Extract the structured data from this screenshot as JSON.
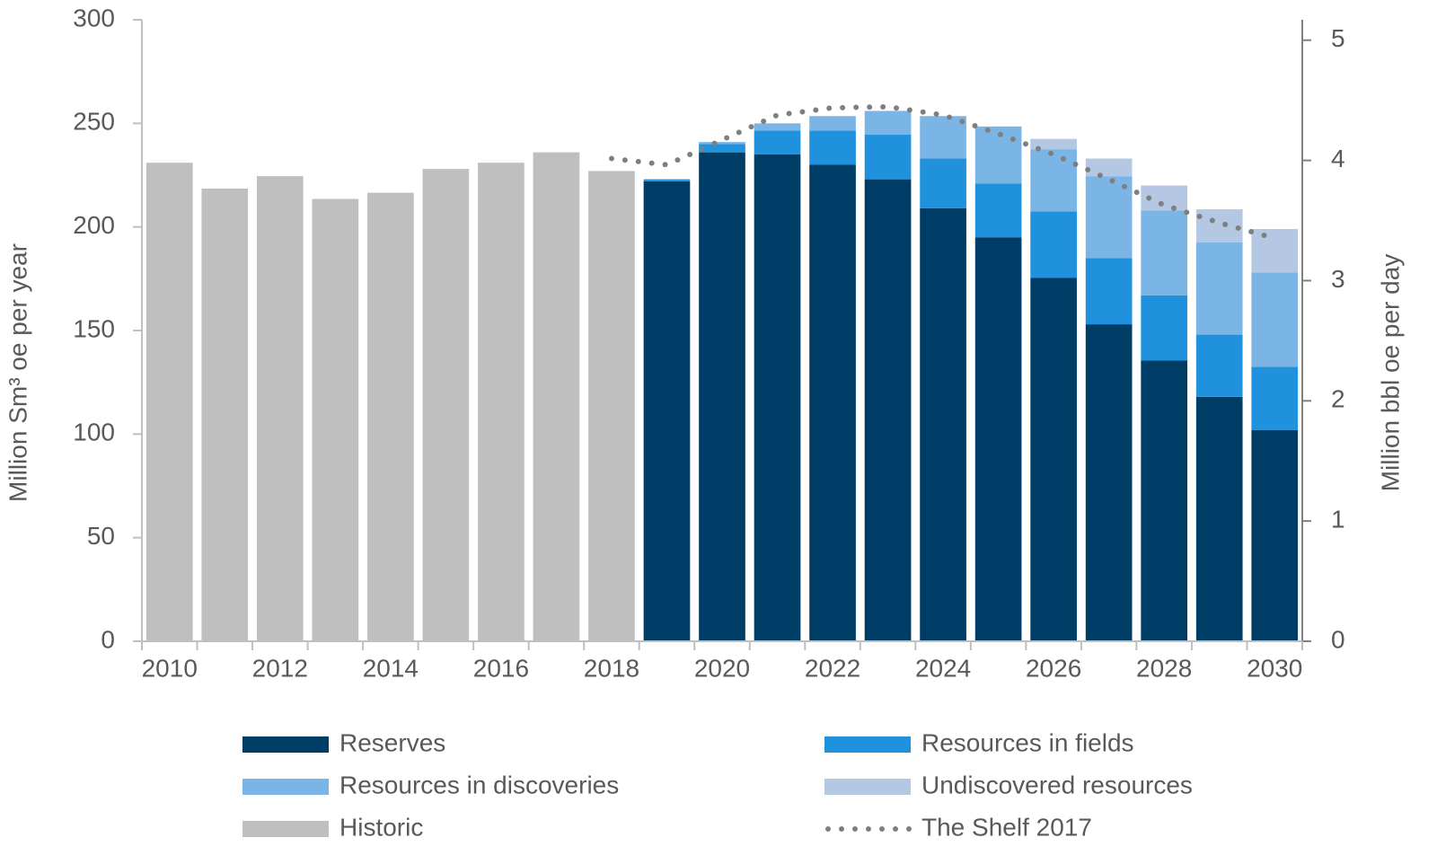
{
  "chart_data": {
    "type": "bar",
    "stacked": true,
    "categories": [
      "2010",
      null,
      "2012",
      null,
      "2014",
      null,
      "2016",
      null,
      "2018",
      null,
      "2020",
      null,
      "2022",
      null,
      "2024",
      null,
      "2026",
      null,
      "2028",
      null,
      "2030"
    ],
    "series": [
      {
        "name": "Reserves",
        "color": "#003d66",
        "values": [
          null,
          null,
          null,
          null,
          null,
          null,
          null,
          null,
          null,
          222,
          236,
          235,
          230,
          223,
          209,
          195,
          175.5,
          153,
          135.5,
          118,
          102
        ]
      },
      {
        "name": "Resources in fields",
        "color": "#2091dc",
        "values": [
          null,
          null,
          null,
          null,
          null,
          null,
          null,
          null,
          null,
          1,
          4,
          11.5,
          16.5,
          21.5,
          24,
          26,
          32,
          32,
          31.5,
          30,
          30.5
        ]
      },
      {
        "name": "Resources in discoveries",
        "color": "#7bb5e6",
        "values": [
          null,
          null,
          null,
          null,
          null,
          null,
          null,
          null,
          null,
          0,
          1,
          3.5,
          7,
          11.5,
          20.5,
          27.5,
          30,
          39.5,
          41,
          44.5,
          45.5
        ]
      },
      {
        "name": "Undiscovered resources",
        "color": "#b4c7e3",
        "values": [
          null,
          null,
          null,
          null,
          null,
          null,
          null,
          null,
          null,
          0,
          0,
          0,
          0,
          0,
          0,
          0,
          5,
          8.5,
          12,
          16,
          21
        ]
      },
      {
        "name": "Historic",
        "color": "#bfbfbf",
        "values": [
          231,
          218.5,
          224.5,
          213.5,
          216.5,
          228,
          231,
          236,
          227,
          null,
          null,
          null,
          null,
          null,
          null,
          null,
          null,
          null,
          null,
          null,
          null
        ]
      },
      {
        "name": "The Shelf 2017",
        "type": "line",
        "color": "#7f7f7f",
        "values": [
          null,
          null,
          null,
          null,
          null,
          null,
          null,
          null,
          233,
          230,
          242,
          254,
          257.5,
          258,
          254,
          245,
          235,
          223,
          210.5,
          202,
          194.5
        ]
      }
    ],
    "y_label": "Million Sm³ oe per year",
    "y2_label": "Million bbl oe per day",
    "ylim": [
      0,
      300
    ],
    "yticks": [
      0,
      50,
      100,
      150,
      200,
      250,
      300
    ],
    "y2lim": [
      0,
      5.17
    ],
    "y2ticks": [
      0,
      1,
      2,
      3,
      4,
      5
    ],
    "grid": false
  }
}
